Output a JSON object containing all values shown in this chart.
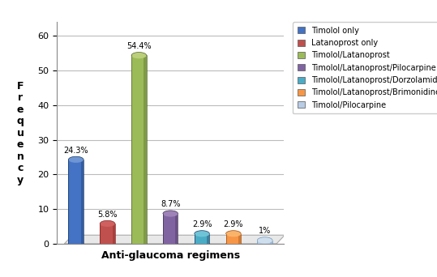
{
  "categories": [
    "Timolol only",
    "Latanoprost only",
    "Timolol/Latanoprost",
    "Timolol/Latanoprost/Pilocarpine",
    "Timolol/Latanoprost/Dorzolamide",
    "Timolol/Latanoprost/Brimonidine",
    "Timolol/Pilocarpine"
  ],
  "values": [
    24.3,
    5.8,
    54.4,
    8.7,
    2.9,
    2.9,
    1.0
  ],
  "labels": [
    "24.3%",
    "5.8%",
    "54.4%",
    "8.7%",
    "2.9%",
    "2.9%",
    "1%"
  ],
  "bar_colors": [
    "#4472C4",
    "#C0504D",
    "#9BBB59",
    "#8064A2",
    "#4BACC6",
    "#F79646",
    "#B8CCE4"
  ],
  "bar_dark_colors": [
    "#17375E",
    "#7F2020",
    "#4F6228",
    "#3F3151",
    "#17375E",
    "#974706",
    "#7099C0"
  ],
  "bar_top_colors": [
    "#6E95D4",
    "#D06060",
    "#BBCF7A",
    "#9E82B8",
    "#6EC4D6",
    "#F9B46A",
    "#D0DFEE"
  ],
  "ylabel": "Frequency",
  "xlabel": "Anti-glaucoma regimens",
  "ylim": [
    0,
    60
  ],
  "yticks": [
    0,
    10,
    20,
    30,
    40,
    50,
    60
  ],
  "background_color": "#FFFFFF",
  "grid_color": "#BBBBBB",
  "floor_color": "#E8E8E8",
  "figsize": [
    5.39,
    3.42
  ],
  "dpi": 100
}
